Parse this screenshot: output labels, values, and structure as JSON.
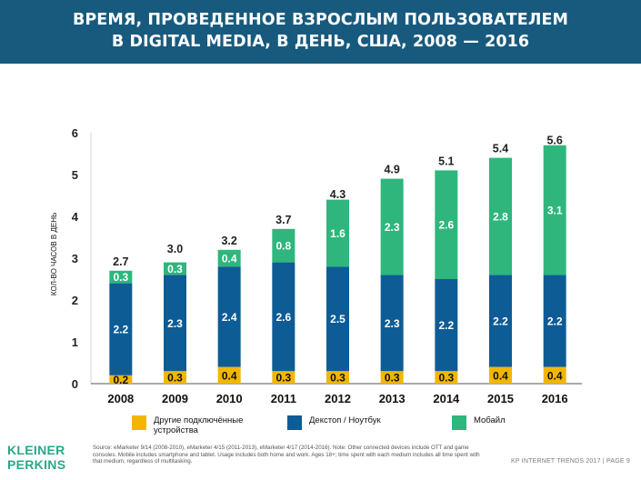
{
  "header": {
    "title_line1": "ВРЕМЯ, ПРОВЕДЕННОЕ ВЗРОСЛЫМ ПОЛЬЗОВАТЕЛЕМ",
    "title_line2": "В DIGITAL MEDIA, В ДЕНЬ, США, 2008 — 2016"
  },
  "chart_data": {
    "type": "bar",
    "stacked": true,
    "categories": [
      "2008",
      "2009",
      "2010",
      "2011",
      "2012",
      "2013",
      "2014",
      "2015",
      "2016"
    ],
    "series": [
      {
        "name": "Другие подключённые устройства",
        "color": "#f2b600",
        "values": [
          0.2,
          0.3,
          0.4,
          0.3,
          0.3,
          0.3,
          0.3,
          0.4,
          0.4
        ]
      },
      {
        "name": "Декстоп / Ноутбук",
        "color": "#0e5c96",
        "values": [
          2.2,
          2.3,
          2.4,
          2.6,
          2.5,
          2.3,
          2.2,
          2.2,
          2.2
        ]
      },
      {
        "name": "Мобайл",
        "color": "#2eb67d",
        "values": [
          0.3,
          0.3,
          0.4,
          0.8,
          1.6,
          2.3,
          2.6,
          2.8,
          3.1
        ]
      }
    ],
    "totals": [
      2.7,
      3.0,
      3.2,
      3.7,
      4.3,
      4.9,
      5.1,
      5.4,
      5.6
    ],
    "ylabel": "КОЛ-ВО ЧАСОВ В ДЕНЬ",
    "ylim": [
      0,
      6
    ],
    "yticks": [
      0,
      1,
      2,
      3,
      4,
      5,
      6
    ],
    "grid": false,
    "legend_position": "bottom"
  },
  "legend": {
    "other_label_line1": "Другие подключённые",
    "other_label_line2": "устройства",
    "desktop_label": "Декстоп / Ноутбук",
    "mobile_label": "Мобайл"
  },
  "footer": {
    "logo_line1": "KLEINER",
    "logo_line2": "PERKINS",
    "source": "Source: eMarketer 9/14 (2008-2010), eMarketer 4/15 (2011-2013), eMarketer 4/17 (2014-2016). Note: Other connected devices include OTT and game consoles. Mobile includes smartphone and tablet. Usage includes both home and work. Ages 18+; time spent with each medium includes all time spent with that medium, regardless of multitasking.",
    "page_label": "KP INTERNET TRENDS 2017 | PAGE 9"
  }
}
